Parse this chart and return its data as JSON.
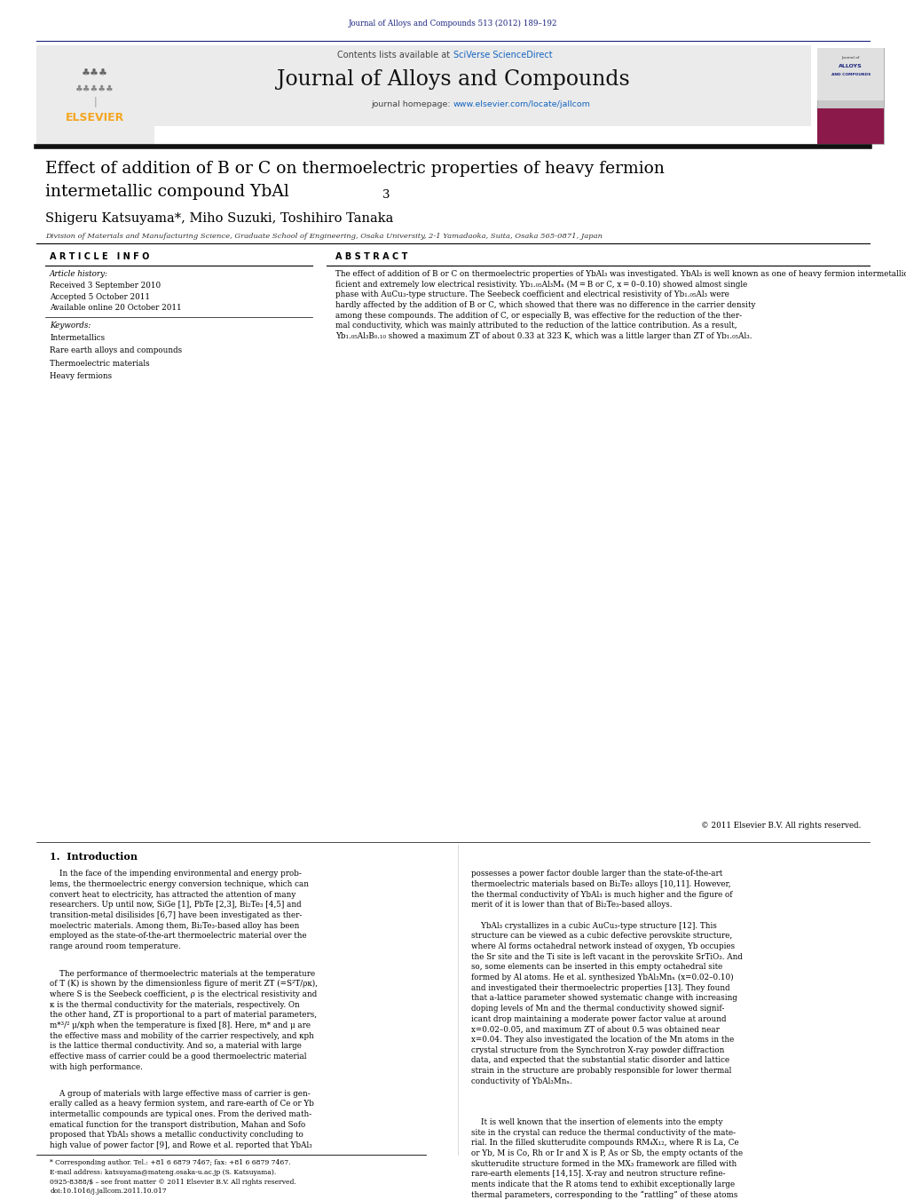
{
  "page_width": 10.21,
  "page_height": 13.51,
  "background_color": "#ffffff",
  "header_citation": "Journal of Alloys and Compounds 513 (2012) 189–192",
  "header_citation_color": "#1a237e",
  "journal_banner_bg": "#e8e8e8",
  "journal_name": "Journal of Alloys and Compounds",
  "journal_homepage_prefix": "journal homepage: ",
  "journal_homepage_url": "www.elsevier.com/locate/jallcom",
  "contents_prefix": "Contents lists available at ",
  "contents_link": "SciVerse ScienceDirect",
  "elsevier_color": "#f4a620",
  "title_line1": "Effect of addition of B or C on thermoelectric properties of heavy fermion",
  "title_line2": "intermetallic compound YbAl",
  "title_subscript": "3",
  "authors": "Shigeru Katsuyama*, Miho Suzuki, Toshihiro Tanaka",
  "affiliation": "Division of Materials and Manufacturing Science, Graduate School of Engineering, Osaka University, 2-1 Yamadaoka, Suita, Osaka 565-0871, Japan",
  "article_info_title": "A R T I C L E   I N F O",
  "article_history_label": "Article history:",
  "received": "Received 3 September 2010",
  "accepted": "Accepted 5 October 2011",
  "available": "Available online 20 October 2011",
  "keywords_label": "Keywords:",
  "keyword1": "Intermetallics",
  "keyword2": "Rare earth alloys and compounds",
  "keyword3": "Thermoelectric materials",
  "keyword4": "Heavy fermions",
  "abstract_title": "A B S T R A C T",
  "abstract_text": "The effect of addition of B or C on thermoelectric properties of YbAl₃ was investigated. YbAl₃ is well known as one of heavy fermion intermetallic compounds, which generally possess relatively large Seebeck coef-\nficient and extremely low electrical resistivity. Yb₁.₀₅Al₃Mₓ (M = B or C, x = 0–0.10) showed almost single\nphase with AuCu₃-type structure. The Seebeck coefficient and electrical resistivity of Yb₁.₀₅Al₃ were\nhardly affected by the addition of B or C, which showed that there was no difference in the carrier density\namong these compounds. The addition of C, or especially B, was effective for the reduction of the ther-\nmal conductivity, which was mainly attributed to the reduction of the lattice contribution. As a result,\nYb₁.₀₅Al₃B₀.₁₀ showed a maximum ZT of about 0.33 at 323 K, which was a little larger than ZT of Yb₁.₀₅Al₃.",
  "copyright": "© 2011 Elsevier B.V. All rights reserved.",
  "intro_title": "1.  Introduction",
  "intro_col1_p1": "    In the face of the impending environmental and energy prob-\nlems, the thermoelectric energy conversion technique, which can\nconvert heat to electricity, has attracted the attention of many\nresearchers. Up until now, SiGe [1], PbTe [2,3], Bi₂Te₃ [4,5] and\ntransition-metal disilisides [6,7] have been investigated as ther-\nmoelectric materials. Among them, Bi₂Te₃-based alloy has been\nemployed as the state-of-the-art thermoelectric material over the\nrange around room temperature.",
  "intro_col1_p2": "    The performance of thermoelectric materials at the temperature\nof T (K) is shown by the dimensionless figure of merit ZT (=S²T/ρκ),\nwhere S is the Seebeck coefficient, ρ is the electrical resistivity and\nκ is the thermal conductivity for the materials, respectively. On\nthe other hand, ZT is proportional to a part of material parameters,\nm*³/² μ/κph when the temperature is fixed [8]. Here, m* and μ are\nthe effective mass and mobility of the carrier respectively, and κph\nis the lattice thermal conductivity. And so, a material with large\neffective mass of carrier could be a good thermoelectric material\nwith high performance.",
  "intro_col1_p3": "    A group of materials with large effective mass of carrier is gen-\nerally called as a heavy fermion system, and rare-earth of Ce or Yb\nintermetallic compounds are typical ones. From the derived math-\nematical function for the transport distribution, Mahan and Sofo\nproposed that YbAl₃ shows a metallic conductivity concluding to\nhigh value of power factor [9], and Rowe et al. reported that YbAl₃",
  "intro_col2_p1": "possesses a power factor double larger than the state-of-the-art\nthermoelectric materials based on Bi₂Te₃ alloys [10,11]. However,\nthe thermal conductivity of YbAl₃ is much higher and the figure of\nmerit of it is lower than that of Bi₂Te₃-based alloys.",
  "intro_col2_p2": "    YbAl₃ crystallizes in a cubic AuCu₃-type structure [12]. This\nstructure can be viewed as a cubic defective perovskite structure,\nwhere Al forms octahedral network instead of oxygen, Yb occupies\nthe Sr site and the Ti site is left vacant in the perovskite SrTiO₃. And\nso, some elements can be inserted in this empty octahedral site\nformed by Al atoms. He et al. synthesized YbAl₃Mnₓ (x=0.02–0.10)\nand investigated their thermoelectric properties [13]. They found\nthat a-lattice parameter showed systematic change with increasing\ndoping levels of Mn and the thermal conductivity showed signif-\nicant drop maintaining a moderate power factor value at around\nx=0.02–0.05, and maximum ZT of about 0.5 was obtained near\nx=0.04. They also investigated the location of the Mn atoms in the\ncrystal structure from the Synchrotron X-ray powder diffraction\ndata, and expected that the substantial static disorder and lattice\nstrain in the structure are probably responsible for lower thermal\nconductivity of YbAl₃Mnₓ.",
  "intro_col2_p3": "    It is well known that the insertion of elements into the empty\nsite in the crystal can reduce the thermal conductivity of the mate-\nrial. In the filled skutterudite compounds RM₄X₁₂, where R is La, Ce\nor Yb, M is Co, Rh or Ir and X is P, As or Sb, the empty octants of the\nskutterudite structure formed in the MX₃ framework are filled with\nrare-earth elements [14,15]. X-ray and neutron structure refine-\nments indicate that the R atoms tend to exhibit exceptionally large\nthermal parameters, corresponding to the “rattling” of these atoms\nin an oversized atomic cage [16,17]. This rattling markedly reduces\nthe thermal conductivity of these filled skutterudite compounds,",
  "footnote_star": "* Corresponding author. Tel.: +81 6 6879 7467; fax: +81 6 6879 7467.",
  "footnote_email": "E-mail address: katsuyama@mateng.osaka-u.ac.jp (S. Katsuyama).",
  "footnote_issn": "0925-8388/$ – see front matter © 2011 Elsevier B.V. All rights reserved.",
  "footnote_doi": "doi:10.1016/j.jallcom.2011.10.017"
}
